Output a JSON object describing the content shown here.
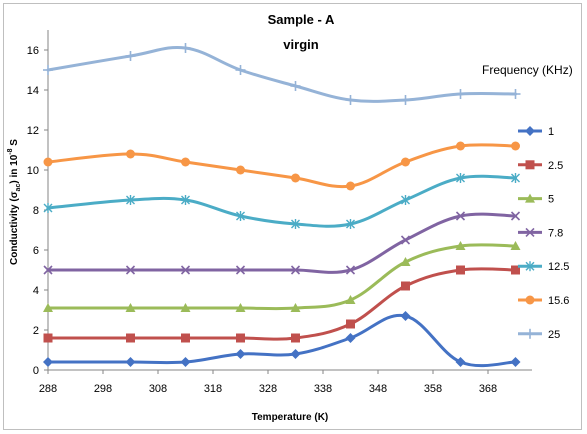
{
  "chart_data": {
    "type": "line",
    "title": "Sample - A",
    "subtitle": "virgin",
    "xlabel": "Temperature (K)",
    "ylabel": {
      "prefix": "Conductivity (σ",
      "sub": "ac",
      "middle": ") in  10",
      "sup": "-8",
      "suffix": " S"
    },
    "xlim": [
      288,
      376
    ],
    "ylim": [
      0,
      17
    ],
    "xticks": [
      288,
      298,
      308,
      318,
      328,
      338,
      348,
      358,
      368
    ],
    "yticks": [
      0,
      2,
      4,
      6,
      8,
      10,
      12,
      14,
      16
    ],
    "grid": false,
    "legend": {
      "title": "Frequency (KHz)",
      "position": "right"
    },
    "x": [
      288,
      303,
      313,
      323,
      333,
      343,
      353,
      363,
      373
    ],
    "series": [
      {
        "name": "1",
        "color": "#4472c4",
        "marker": "diamond",
        "values": [
          0.4,
          0.4,
          0.4,
          0.8,
          0.8,
          1.6,
          2.7,
          0.4,
          0.4
        ]
      },
      {
        "name": "2.5",
        "color": "#c0504d",
        "marker": "square",
        "values": [
          1.6,
          1.6,
          1.6,
          1.6,
          1.6,
          2.3,
          4.2,
          5.0,
          5.0
        ]
      },
      {
        "name": "5",
        "color": "#9bbb59",
        "marker": "triangle",
        "values": [
          3.1,
          3.1,
          3.1,
          3.1,
          3.1,
          3.5,
          5.4,
          6.2,
          6.2
        ]
      },
      {
        "name": "7.8",
        "color": "#8064a2",
        "marker": "x",
        "values": [
          5.0,
          5.0,
          5.0,
          5.0,
          5.0,
          5.0,
          6.5,
          7.7,
          7.7
        ]
      },
      {
        "name": "12.5",
        "color": "#4bacc6",
        "marker": "star",
        "values": [
          8.1,
          8.5,
          8.5,
          7.7,
          7.3,
          7.3,
          8.5,
          9.6,
          9.6
        ]
      },
      {
        "name": "15.6",
        "color": "#f79646",
        "marker": "circle",
        "values": [
          10.4,
          10.8,
          10.4,
          10.0,
          9.6,
          9.2,
          10.4,
          11.2,
          11.2
        ]
      },
      {
        "name": "25",
        "color": "#95b3d7",
        "marker": "plus",
        "values": [
          15.0,
          15.7,
          16.1,
          15.0,
          14.2,
          13.5,
          13.5,
          13.8,
          13.8
        ]
      }
    ]
  }
}
